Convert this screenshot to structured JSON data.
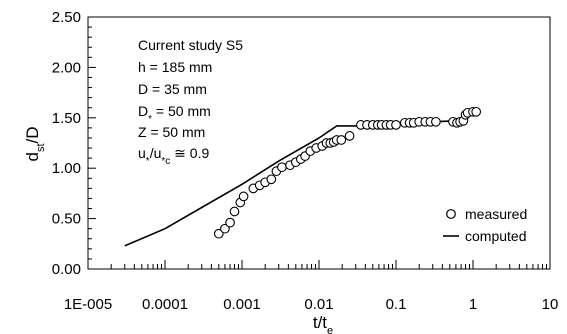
{
  "chart_data": {
    "type": "scatter",
    "title": "",
    "xlabel": "t/t",
    "xlabel_sub": "e",
    "ylabel": "d",
    "ylabel_sub": "st",
    "ylabel_suffix": "/D",
    "x_scale": "log",
    "xlim": [
      1e-05,
      10
    ],
    "ylim": [
      0,
      2.5
    ],
    "x_tick_labels": [
      "1E-005",
      "0.0001",
      "0.001",
      "0.01",
      "0.1",
      "1",
      "10"
    ],
    "x_tick_values": [
      1e-05,
      0.0001,
      0.001,
      0.01,
      0.1,
      1,
      10
    ],
    "y_tick_labels": [
      "0.00",
      "0.50",
      "1.00",
      "1.50",
      "2.00",
      "2.50"
    ],
    "y_tick_values": [
      0,
      0.5,
      1.0,
      1.5,
      2.0,
      2.5
    ],
    "grid": false,
    "legend_position": "bottom-right",
    "annotation_lines": [
      {
        "text": "Current study S5"
      },
      {
        "text": "h = 185 mm"
      },
      {
        "text": "D = 35 mm"
      },
      {
        "text": "D",
        "sub": "*",
        "tail": " = 50 mm"
      },
      {
        "text": "Z = 50 mm"
      },
      {
        "text": "u",
        "sub": "*",
        "tail": "/u",
        "sub2": "*c",
        "tail2": " ≅ 0.9"
      }
    ],
    "series": [
      {
        "name": "measured",
        "marker": "open-circle",
        "color": "#000000",
        "points": [
          [
            0.0005,
            0.35
          ],
          [
            0.0006,
            0.4
          ],
          [
            0.0007,
            0.46
          ],
          [
            0.0008,
            0.57
          ],
          [
            0.00095,
            0.66
          ],
          [
            0.00105,
            0.72
          ],
          [
            0.0014,
            0.8
          ],
          [
            0.0017,
            0.83
          ],
          [
            0.002,
            0.86
          ],
          [
            0.0024,
            0.89
          ],
          [
            0.0028,
            0.97
          ],
          [
            0.0033,
            1.01
          ],
          [
            0.0042,
            1.03
          ],
          [
            0.005,
            1.06
          ],
          [
            0.0058,
            1.09
          ],
          [
            0.0066,
            1.12
          ],
          [
            0.0077,
            1.17
          ],
          [
            0.0092,
            1.2
          ],
          [
            0.011,
            1.22
          ],
          [
            0.0125,
            1.25
          ],
          [
            0.014,
            1.25
          ],
          [
            0.0155,
            1.26
          ],
          [
            0.017,
            1.28
          ],
          [
            0.0195,
            1.28
          ],
          [
            0.025,
            1.32
          ],
          [
            0.035,
            1.43
          ],
          [
            0.042,
            1.43
          ],
          [
            0.05,
            1.43
          ],
          [
            0.058,
            1.43
          ],
          [
            0.065,
            1.43
          ],
          [
            0.075,
            1.43
          ],
          [
            0.085,
            1.43
          ],
          [
            0.1,
            1.43
          ],
          [
            0.13,
            1.45
          ],
          [
            0.15,
            1.45
          ],
          [
            0.17,
            1.45
          ],
          [
            0.2,
            1.46
          ],
          [
            0.24,
            1.46
          ],
          [
            0.28,
            1.46
          ],
          [
            0.33,
            1.46
          ],
          [
            0.55,
            1.46
          ],
          [
            0.62,
            1.45
          ],
          [
            0.68,
            1.46
          ],
          [
            0.75,
            1.47
          ],
          [
            0.8,
            1.53
          ],
          [
            0.85,
            1.55
          ],
          [
            1.0,
            1.56
          ],
          [
            1.1,
            1.56
          ]
        ]
      },
      {
        "name": "computed",
        "marker": "line",
        "color": "#000000",
        "points": [
          [
            3e-05,
            0.23
          ],
          [
            0.0001,
            0.4
          ],
          [
            0.0003,
            0.61
          ],
          [
            0.001,
            0.84
          ],
          [
            0.003,
            1.07
          ],
          [
            0.01,
            1.3
          ],
          [
            0.017,
            1.42
          ],
          [
            0.04,
            1.42
          ],
          [
            0.1,
            1.44
          ],
          [
            0.3,
            1.46
          ],
          [
            0.6,
            1.47
          ],
          [
            0.8,
            1.5
          ],
          [
            1.1,
            1.56
          ]
        ]
      }
    ]
  }
}
